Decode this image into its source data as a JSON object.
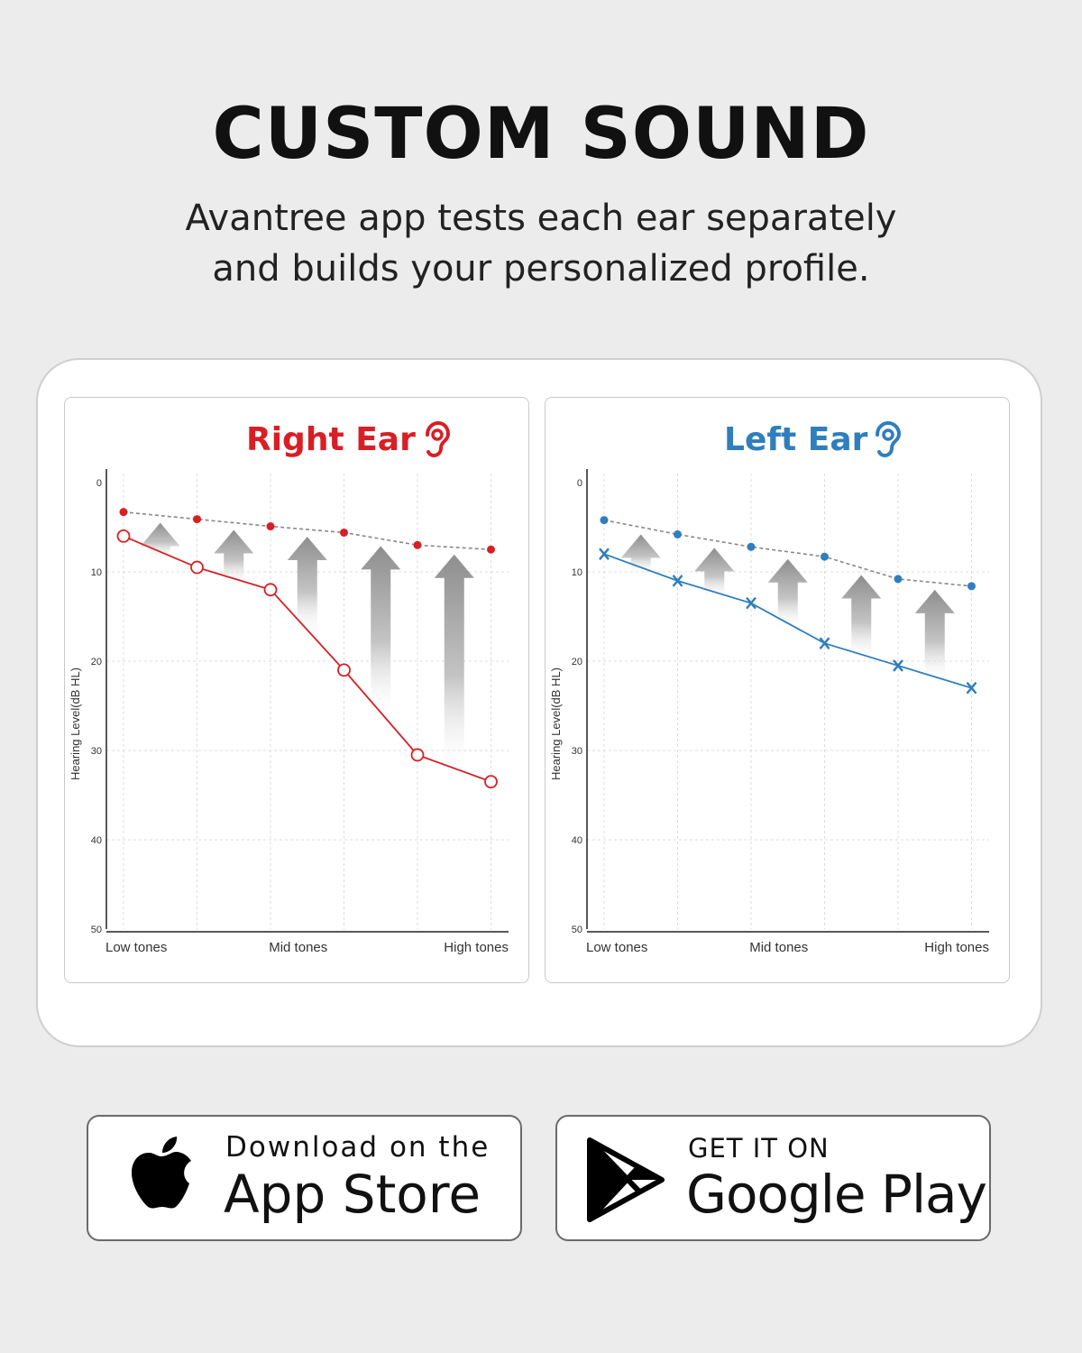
{
  "headline": "CUSTOM SOUND",
  "subtitle": {
    "line1": "Avantree app tests each ear separately",
    "line2": "and builds your personalized profile."
  },
  "chart_data": [
    {
      "type": "line",
      "title": "Right Ear",
      "icon": "ear-icon",
      "color": "#d71f25",
      "ylabel": "Hearing Level(dB HL)",
      "ylim": [
        0,
        50
      ],
      "y_inverted": true,
      "yticks": [
        "0",
        "10",
        "20",
        "30",
        "40",
        "50"
      ],
      "x_tick_labels": [
        "Low tones",
        "Mid tones",
        "High tones"
      ],
      "grid": true,
      "series": [
        {
          "values": [
            6,
            9.5,
            12,
            21,
            30.5,
            33.5
          ],
          "style": "solid",
          "marker": "circle-open"
        },
        {
          "values": [
            3.3,
            4.1,
            4.9,
            5.6,
            7,
            7.5
          ],
          "style": "dashed",
          "marker": "dot"
        }
      ]
    },
    {
      "type": "line",
      "title": "Left Ear",
      "icon": "ear-icon",
      "color": "#2f7ebd",
      "ylabel": "Hearing Level(dB HL)",
      "ylim": [
        0,
        50
      ],
      "y_inverted": true,
      "yticks": [
        "0",
        "10",
        "20",
        "30",
        "40",
        "50"
      ],
      "x_tick_labels": [
        "Low tones",
        "Mid tones",
        "High tones"
      ],
      "grid": true,
      "series": [
        {
          "values": [
            8,
            11,
            13.5,
            18,
            20.5,
            23
          ],
          "style": "solid",
          "marker": "x"
        },
        {
          "values": [
            4.2,
            5.8,
            7.2,
            8.3,
            10.8,
            11.6
          ],
          "style": "dashed",
          "marker": "dot"
        }
      ]
    }
  ],
  "app_store": {
    "small": "Download on the",
    "big": "App Store",
    "icon": "apple-icon"
  },
  "google_play": {
    "small": "GET IT ON",
    "big": "Google Play",
    "icon": "play-icon"
  }
}
